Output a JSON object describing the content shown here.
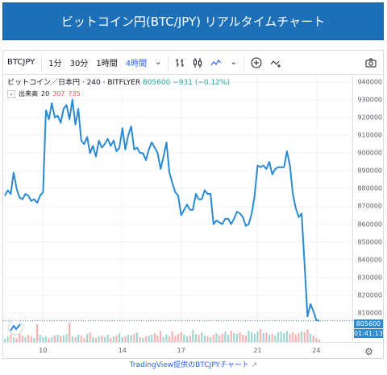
{
  "banner": {
    "title": "ビットコイン円(BTC/JPY) リアルタイムチャート"
  },
  "toolbar": {
    "symbol": "BTCJPY",
    "intervals": [
      "1分",
      "30分",
      "1時間",
      "4時間"
    ],
    "active_interval": "4時間",
    "chevron": "⌄"
  },
  "legend": {
    "name": "ビットコイン／日本円 · 240 · BITFLYER",
    "price": "805600",
    "change": "−931 (−0.12%)"
  },
  "volume_legend": {
    "label": "出来高",
    "v1": "20",
    "v2": "307",
    "v3": "735"
  },
  "chart_data": {
    "type": "line",
    "y_ticks": [
      810000,
      820000,
      830000,
      840000,
      850000,
      860000,
      870000,
      880000,
      890000,
      900000,
      910000,
      920000,
      930000,
      940000
    ],
    "ylim": [
      800000,
      944000
    ],
    "x_ticks": [
      "10",
      "14",
      "17",
      "21",
      "24"
    ],
    "x_tick_index": [
      13,
      40,
      60,
      86,
      106
    ],
    "current_price_label": "805600",
    "countdown_label": "01:41:13",
    "series": [
      {
        "values": [
          876000,
          879000,
          877000,
          889000,
          880000,
          875000,
          874000,
          877000,
          876000,
          873000,
          874000,
          872000,
          876000,
          878000,
          924000,
          919000,
          928000,
          920000,
          921000,
          917000,
          925000,
          927000,
          919000,
          930000,
          916000,
          925000,
          907000,
          905000,
          909000,
          900000,
          904000,
          898000,
          907000,
          903000,
          905000,
          908000,
          904000,
          907000,
          901000,
          903000,
          914000,
          902000,
          910000,
          915000,
          902000,
          903000,
          900000,
          900000,
          896000,
          902000,
          906000,
          903000,
          900000,
          891000,
          898000,
          906000,
          889000,
          883000,
          878000,
          876000,
          865000,
          868000,
          871000,
          868000,
          868000,
          877000,
          874000,
          874000,
          879000,
          877000,
          877000,
          860000,
          862000,
          861000,
          860000,
          863000,
          863000,
          860000,
          863000,
          867000,
          866000,
          864000,
          859000,
          860000,
          866000,
          876000,
          893000,
          892000,
          893000,
          891000,
          895000,
          888000,
          891000,
          892000,
          892000,
          892000,
          901000,
          893000,
          877000,
          869000,
          864000,
          866000,
          837000,
          808000,
          815000,
          811000,
          806000,
          805600
        ]
      }
    ],
    "volume": [
      4,
      7,
      9,
      6,
      5,
      11,
      8,
      6,
      9,
      7,
      5,
      22,
      9,
      6,
      7,
      5,
      6,
      8,
      9,
      7,
      8,
      10,
      24,
      7,
      6,
      9,
      8,
      5,
      10,
      12,
      6,
      5,
      7,
      8,
      6,
      9,
      5,
      7,
      8,
      11,
      6,
      7,
      9,
      8,
      10,
      12,
      6,
      5,
      7,
      8,
      9,
      11,
      8,
      14,
      6,
      9,
      7,
      13,
      8,
      10,
      12,
      9,
      7,
      8,
      15,
      10,
      9,
      12,
      8,
      7,
      6,
      9,
      11,
      8,
      10,
      13,
      9,
      14,
      11,
      10,
      12,
      9,
      8,
      14,
      12,
      10,
      13,
      16,
      11,
      12,
      9,
      10,
      8,
      12,
      13,
      11,
      14,
      10,
      12,
      9,
      11,
      13,
      12,
      16,
      10,
      8,
      5,
      3
    ],
    "volume_colors": [
      "#26a69a",
      "#ef5350"
    ]
  },
  "footer": {
    "link": "TradingView提供のBTCJPYチャート"
  },
  "colors": {
    "line": "#2a8ad3",
    "banner": "#1d6fb8"
  }
}
